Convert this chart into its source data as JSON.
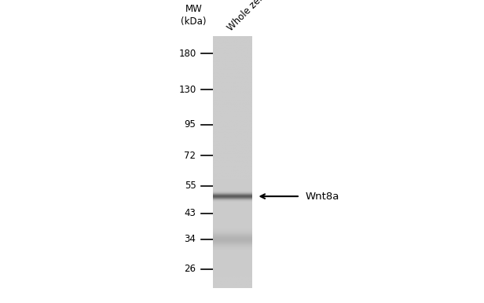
{
  "bg_color": "#ffffff",
  "mw_labels": [
    180,
    130,
    95,
    72,
    55,
    43,
    34,
    26
  ],
  "band_kda": 50,
  "sample_label": "Whole zebrafish",
  "protein_label": "Wnt8a",
  "mw_header": "MW\n(kDa)",
  "lane_base_gray": 0.8,
  "band_dark_gray": 0.38,
  "band_sigma": 0.018,
  "faint_band_kda": 34,
  "faint_band_gray": 0.68,
  "faint_band_sigma": 0.04,
  "kda_min": 22,
  "kda_max": 210
}
